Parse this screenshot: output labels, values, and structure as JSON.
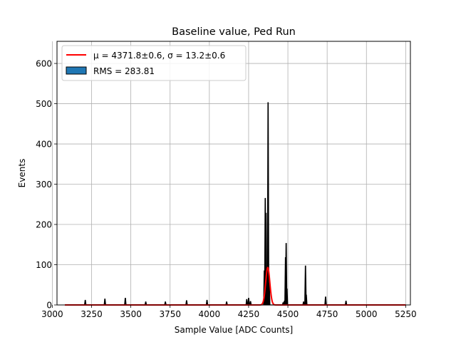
{
  "chart_data": {
    "type": "histogram",
    "title": "Baseline value, Ped Run",
    "xlabel": "Sample Value [ADC Counts]",
    "ylabel": "Events",
    "xlim": [
      3030,
      5280
    ],
    "ylim": [
      0,
      655
    ],
    "x_ticks": [
      3000,
      3250,
      3500,
      3750,
      4000,
      4250,
      4500,
      4750,
      5000,
      5250
    ],
    "y_ticks": [
      0,
      100,
      200,
      300,
      400,
      500,
      600
    ],
    "grid": true,
    "legend_position": "top-left",
    "legend": [
      {
        "label": "μ = 4371.8±0.6, σ = 13.2±0.6",
        "kind": "line",
        "color": "#ff0000"
      },
      {
        "label": "RMS = 283.81",
        "kind": "patch",
        "color": "#1f77b4",
        "edge": "#000000"
      }
    ],
    "histogram": {
      "fill_color": "#1f77b4",
      "edge_color": "#000000",
      "range": [
        3080,
        5250
      ],
      "peaks": [
        {
          "x": 3210,
          "count": 12
        },
        {
          "x": 3335,
          "count": 15
        },
        {
          "x": 3465,
          "count": 17
        },
        {
          "x": 3595,
          "count": 8
        },
        {
          "x": 3720,
          "count": 8
        },
        {
          "x": 3855,
          "count": 11
        },
        {
          "x": 3985,
          "count": 12
        },
        {
          "x": 4110,
          "count": 8
        },
        {
          "x": 4238,
          "count": 14
        },
        {
          "x": 4250,
          "count": 17
        },
        {
          "x": 4262,
          "count": 9
        },
        {
          "x": 4350,
          "count": 85
        },
        {
          "x": 4356,
          "count": 265
        },
        {
          "x": 4361,
          "count": 228
        },
        {
          "x": 4374,
          "count": 503
        },
        {
          "x": 4381,
          "count": 55
        },
        {
          "x": 4470,
          "count": 6
        },
        {
          "x": 4478,
          "count": 10
        },
        {
          "x": 4485,
          "count": 118
        },
        {
          "x": 4489,
          "count": 153
        },
        {
          "x": 4494,
          "count": 40
        },
        {
          "x": 4600,
          "count": 8
        },
        {
          "x": 4612,
          "count": 97
        },
        {
          "x": 4617,
          "count": 25
        },
        {
          "x": 4740,
          "count": 20
        },
        {
          "x": 4870,
          "count": 10
        }
      ]
    },
    "fit": {
      "type": "gaussian",
      "color": "#ff0000",
      "mu": 4371.8,
      "sigma": 13.2,
      "amplitude": 93
    }
  }
}
